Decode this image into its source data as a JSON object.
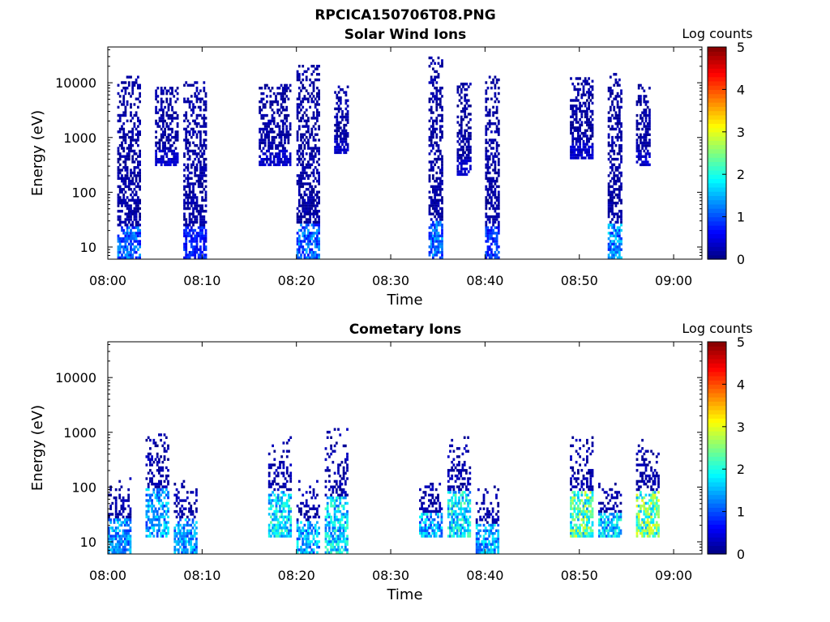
{
  "figure_title": "RPCICA150706T08.PNG",
  "chart_data": [
    {
      "type": "heatmap",
      "title": "Solar Wind Ions",
      "xlabel": "Time",
      "ylabel": "Energy (eV)",
      "y_scale": "log",
      "ylim": [
        6,
        45000
      ],
      "xlim": [
        "08:00",
        "09:03"
      ],
      "x_ticks": [
        "08:00",
        "08:10",
        "08:20",
        "08:30",
        "08:40",
        "08:50",
        "09:00"
      ],
      "y_ticks": [
        "10",
        "100",
        "1000",
        "10000"
      ],
      "colorbar": {
        "label": "Log counts",
        "ticks": [
          "0",
          "1",
          "2",
          "3",
          "4",
          "5"
        ],
        "range": [
          0,
          5
        ],
        "colormap": "jet"
      },
      "bursts": [
        {
          "start": "08:01",
          "end": "08:03",
          "emin": 6,
          "emax": 12000,
          "peak_log_counts": 1.5
        },
        {
          "start": "08:05",
          "end": "08:07",
          "emin": 300,
          "emax": 8000,
          "peak_log_counts": 0.5
        },
        {
          "start": "08:08",
          "end": "08:10",
          "emin": 6,
          "emax": 10000,
          "peak_log_counts": 1.0
        },
        {
          "start": "08:16",
          "end": "08:19",
          "emin": 300,
          "emax": 9000,
          "peak_log_counts": 0.5
        },
        {
          "start": "08:20",
          "end": "08:22",
          "emin": 6,
          "emax": 20000,
          "peak_log_counts": 1.6
        },
        {
          "start": "08:24",
          "end": "08:25",
          "emin": 500,
          "emax": 8000,
          "peak_log_counts": 0.5
        },
        {
          "start": "08:34",
          "end": "08:35",
          "emin": 6,
          "emax": 27000,
          "peak_log_counts": 1.6
        },
        {
          "start": "08:37",
          "end": "08:38",
          "emin": 200,
          "emax": 9000,
          "peak_log_counts": 0.5
        },
        {
          "start": "08:40",
          "end": "08:41",
          "emin": 6,
          "emax": 12000,
          "peak_log_counts": 1.2
        },
        {
          "start": "08:49",
          "end": "08:51",
          "emin": 400,
          "emax": 12000,
          "peak_log_counts": 0.5
        },
        {
          "start": "08:53",
          "end": "08:54",
          "emin": 6,
          "emax": 15000,
          "peak_log_counts": 1.8
        },
        {
          "start": "08:56",
          "end": "08:57",
          "emin": 300,
          "emax": 9000,
          "peak_log_counts": 0.5
        }
      ]
    },
    {
      "type": "heatmap",
      "title": "Cometary Ions",
      "xlabel": "Time",
      "ylabel": "Energy (eV)",
      "y_scale": "log",
      "ylim": [
        6,
        45000
      ],
      "xlim": [
        "08:00",
        "09:03"
      ],
      "x_ticks": [
        "08:00",
        "08:10",
        "08:20",
        "08:30",
        "08:40",
        "08:50",
        "09:00"
      ],
      "y_ticks": [
        "10",
        "100",
        "1000",
        "10000"
      ],
      "colorbar": {
        "label": "Log counts",
        "ticks": [
          "0",
          "1",
          "2",
          "3",
          "4",
          "5"
        ],
        "range": [
          0,
          5
        ],
        "colormap": "jet"
      },
      "bursts": [
        {
          "start": "08:00",
          "end": "08:02",
          "emin": 6,
          "emax": 150,
          "peak_log_counts": 1.8
        },
        {
          "start": "08:04",
          "end": "08:06",
          "emin": 12,
          "emax": 950,
          "peak_log_counts": 1.9
        },
        {
          "start": "08:07",
          "end": "08:09",
          "emin": 6,
          "emax": 130,
          "peak_log_counts": 1.9
        },
        {
          "start": "08:17",
          "end": "08:19",
          "emin": 12,
          "emax": 800,
          "peak_log_counts": 2.4
        },
        {
          "start": "08:20",
          "end": "08:22",
          "emin": 6,
          "emax": 120,
          "peak_log_counts": 2.0
        },
        {
          "start": "08:23",
          "end": "08:25",
          "emin": 6,
          "emax": 1100,
          "peak_log_counts": 2.3
        },
        {
          "start": "08:33",
          "end": "08:35",
          "emin": 12,
          "emax": 120,
          "peak_log_counts": 2.0
        },
        {
          "start": "08:36",
          "end": "08:38",
          "emin": 12,
          "emax": 800,
          "peak_log_counts": 2.4
        },
        {
          "start": "08:39",
          "end": "08:41",
          "emin": 6,
          "emax": 100,
          "peak_log_counts": 2.0
        },
        {
          "start": "08:49",
          "end": "08:51",
          "emin": 12,
          "emax": 900,
          "peak_log_counts": 3.0
        },
        {
          "start": "08:52",
          "end": "08:54",
          "emin": 12,
          "emax": 120,
          "peak_log_counts": 2.2
        },
        {
          "start": "08:56",
          "end": "08:58",
          "emin": 12,
          "emax": 750,
          "peak_log_counts": 3.1
        }
      ]
    }
  ]
}
